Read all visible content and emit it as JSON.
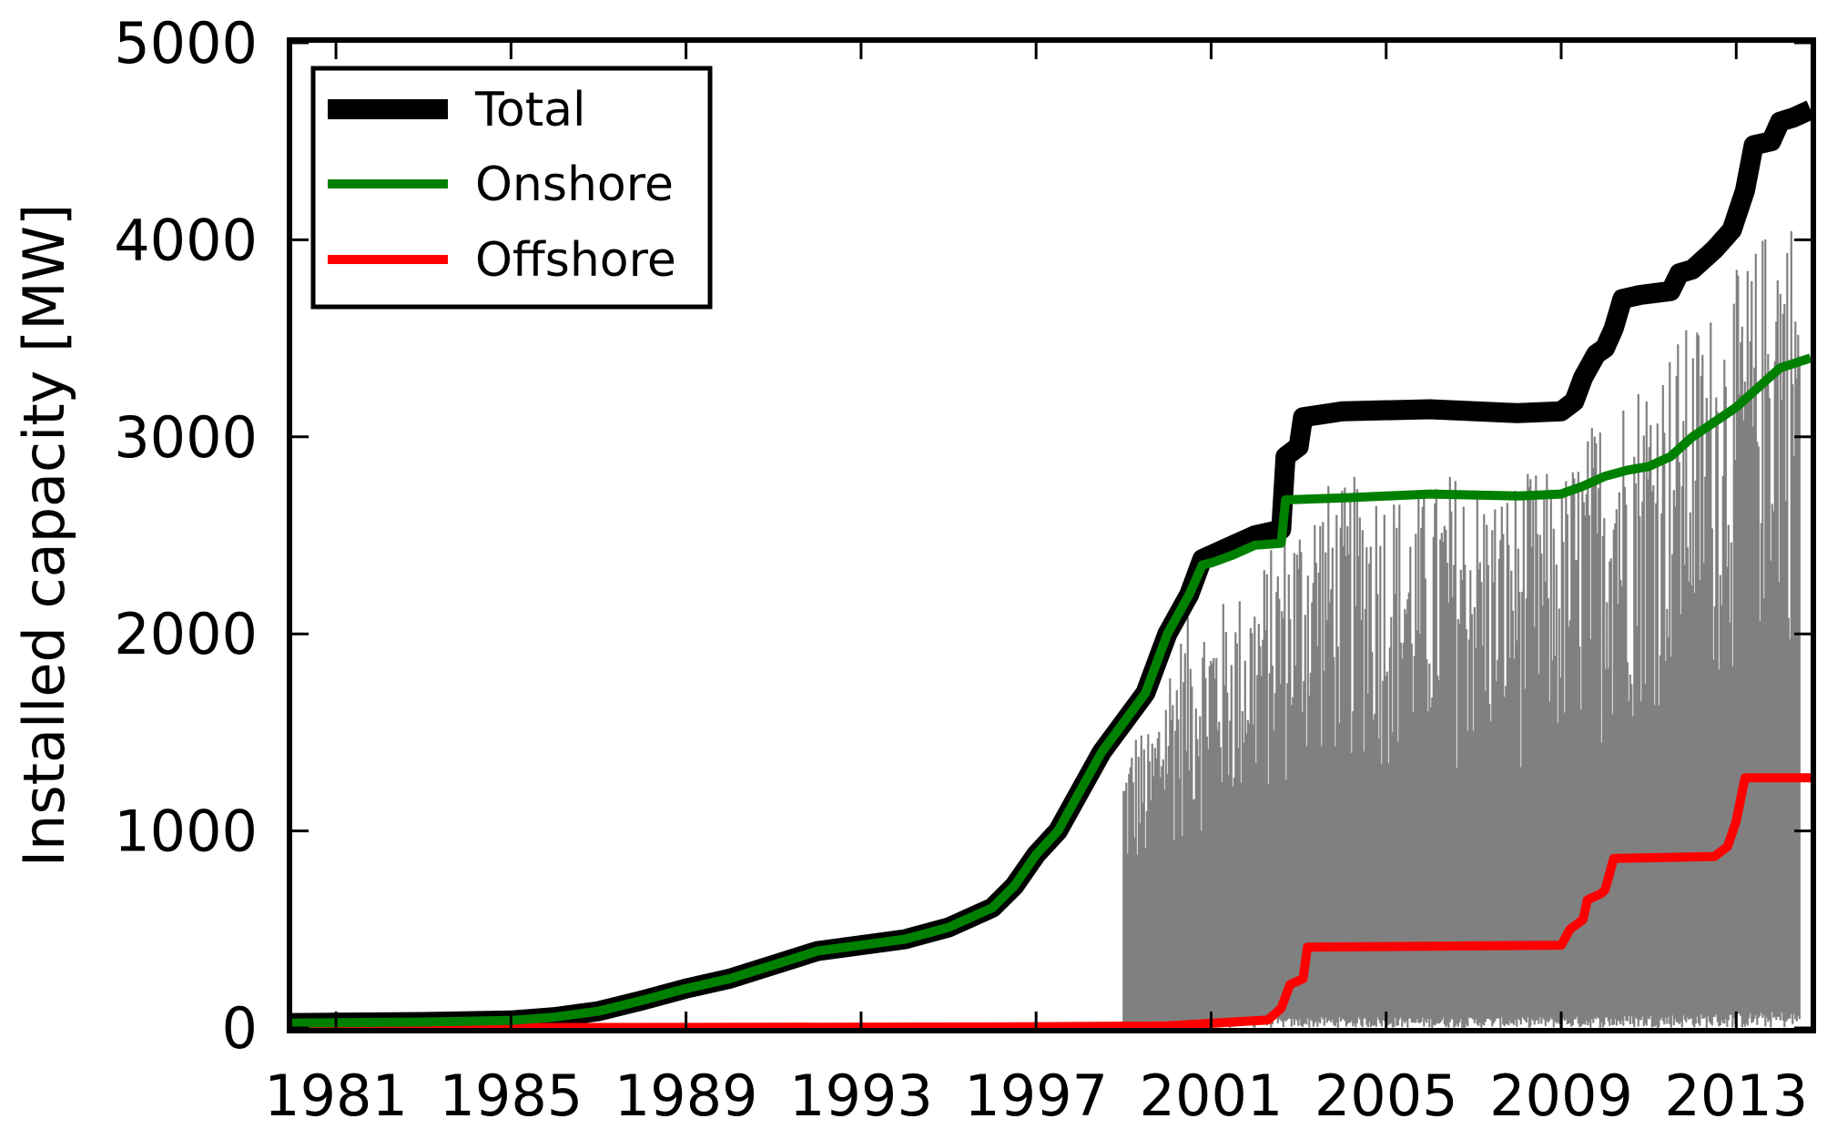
{
  "chart_data": {
    "type": "line",
    "title": "",
    "xlabel": "",
    "ylabel": "Installed capacity [MW]",
    "xlim": [
      1980.0,
      2014.7
    ],
    "ylim": [
      0,
      5000
    ],
    "x_ticks": [
      1981,
      1985,
      1989,
      1993,
      1997,
      2001,
      2005,
      2009,
      2013
    ],
    "y_ticks": [
      0,
      1000,
      2000,
      3000,
      4000,
      5000
    ],
    "grid": false,
    "legend_position": "upper-left",
    "series": [
      {
        "name": "Total",
        "color": "#000000",
        "points": [
          [
            1980.0,
            25
          ],
          [
            1983.0,
            30
          ],
          [
            1985.0,
            38
          ],
          [
            1986.0,
            55
          ],
          [
            1987.0,
            85
          ],
          [
            1988.0,
            140
          ],
          [
            1989.0,
            200
          ],
          [
            1990.0,
            250
          ],
          [
            1991.0,
            320
          ],
          [
            1992.0,
            390
          ],
          [
            1993.0,
            420
          ],
          [
            1994.0,
            450
          ],
          [
            1995.0,
            510
          ],
          [
            1996.0,
            610
          ],
          [
            1996.5,
            720
          ],
          [
            1997.0,
            880
          ],
          [
            1997.5,
            1000
          ],
          [
            1998.0,
            1200
          ],
          [
            1998.5,
            1400
          ],
          [
            1999.0,
            1550
          ],
          [
            1999.5,
            1700
          ],
          [
            2000.0,
            2000
          ],
          [
            2000.5,
            2200
          ],
          [
            2000.8,
            2380
          ],
          [
            2001.0,
            2400
          ],
          [
            2001.5,
            2450
          ],
          [
            2002.0,
            2500
          ],
          [
            2002.6,
            2530
          ],
          [
            2002.7,
            2900
          ],
          [
            2003.0,
            2950
          ],
          [
            2003.1,
            3100
          ],
          [
            2004.0,
            3130
          ],
          [
            2006.0,
            3140
          ],
          [
            2008.0,
            3120
          ],
          [
            2009.0,
            3130
          ],
          [
            2009.3,
            3180
          ],
          [
            2009.5,
            3300
          ],
          [
            2009.8,
            3420
          ],
          [
            2010.0,
            3450
          ],
          [
            2010.2,
            3550
          ],
          [
            2010.4,
            3700
          ],
          [
            2010.8,
            3720
          ],
          [
            2011.5,
            3740
          ],
          [
            2011.7,
            3830
          ],
          [
            2012.0,
            3850
          ],
          [
            2012.5,
            3950
          ],
          [
            2012.9,
            4050
          ],
          [
            2013.2,
            4250
          ],
          [
            2013.4,
            4480
          ],
          [
            2013.8,
            4500
          ],
          [
            2014.0,
            4600
          ],
          [
            2014.3,
            4620
          ],
          [
            2014.7,
            4660
          ]
        ]
      },
      {
        "name": "Onshore",
        "color": "#008000",
        "points": [
          [
            1980.0,
            25
          ],
          [
            1983.0,
            30
          ],
          [
            1985.0,
            38
          ],
          [
            1986.0,
            55
          ],
          [
            1987.0,
            85
          ],
          [
            1988.0,
            140
          ],
          [
            1989.0,
            200
          ],
          [
            1990.0,
            250
          ],
          [
            1991.0,
            320
          ],
          [
            1992.0,
            390
          ],
          [
            1993.0,
            420
          ],
          [
            1994.0,
            450
          ],
          [
            1995.0,
            510
          ],
          [
            1996.0,
            610
          ],
          [
            1996.5,
            720
          ],
          [
            1997.0,
            880
          ],
          [
            1997.5,
            1000
          ],
          [
            1998.0,
            1200
          ],
          [
            1998.5,
            1400
          ],
          [
            1999.0,
            1550
          ],
          [
            1999.5,
            1700
          ],
          [
            2000.0,
            2000
          ],
          [
            2000.5,
            2200
          ],
          [
            2000.8,
            2350
          ],
          [
            2001.0,
            2360
          ],
          [
            2001.5,
            2400
          ],
          [
            2002.0,
            2450
          ],
          [
            2002.6,
            2460
          ],
          [
            2002.7,
            2680
          ],
          [
            2004.0,
            2690
          ],
          [
            2006.0,
            2710
          ],
          [
            2008.0,
            2700
          ],
          [
            2009.0,
            2710
          ],
          [
            2009.5,
            2750
          ],
          [
            2010.0,
            2800
          ],
          [
            2010.5,
            2830
          ],
          [
            2011.0,
            2850
          ],
          [
            2011.5,
            2900
          ],
          [
            2012.0,
            3000
          ],
          [
            2013.0,
            3150
          ],
          [
            2013.5,
            3250
          ],
          [
            2014.0,
            3350
          ],
          [
            2014.7,
            3400
          ]
        ]
      },
      {
        "name": "Offshore",
        "color": "#ff0000",
        "points": [
          [
            1980.0,
            0
          ],
          [
            1996.0,
            5
          ],
          [
            2000.0,
            10
          ],
          [
            2001.5,
            30
          ],
          [
            2002.3,
            40
          ],
          [
            2002.6,
            100
          ],
          [
            2002.8,
            220
          ],
          [
            2003.1,
            250
          ],
          [
            2003.2,
            410
          ],
          [
            2009.0,
            420
          ],
          [
            2009.2,
            500
          ],
          [
            2009.5,
            550
          ],
          [
            2009.6,
            650
          ],
          [
            2009.9,
            680
          ],
          [
            2010.0,
            700
          ],
          [
            2010.2,
            860
          ],
          [
            2012.5,
            870
          ],
          [
            2012.8,
            920
          ],
          [
            2013.0,
            1050
          ],
          [
            2013.2,
            1270
          ],
          [
            2014.7,
            1270
          ]
        ]
      },
      {
        "name": "",
        "color": "#808080",
        "x_range": [
          1999.0,
          2014.45
        ],
        "envelope": [
          [
            1999.0,
            1400
          ],
          [
            1999.3,
            1550
          ],
          [
            1999.6,
            1500
          ],
          [
            2000.0,
            1900
          ],
          [
            2000.5,
            2100
          ],
          [
            2001.0,
            2150
          ],
          [
            2001.5,
            2200
          ],
          [
            2002.0,
            2300
          ],
          [
            2002.5,
            2500
          ],
          [
            2003.0,
            2650
          ],
          [
            2003.5,
            2800
          ],
          [
            2004.0,
            2750
          ],
          [
            2004.5,
            2850
          ],
          [
            2005.0,
            2800
          ],
          [
            2005.5,
            2700
          ],
          [
            2006.0,
            2750
          ],
          [
            2006.5,
            2850
          ],
          [
            2007.0,
            2800
          ],
          [
            2007.5,
            2750
          ],
          [
            2008.0,
            2800
          ],
          [
            2008.5,
            2850
          ],
          [
            2009.0,
            2800
          ],
          [
            2009.5,
            3000
          ],
          [
            2010.0,
            3200
          ],
          [
            2010.5,
            3300
          ],
          [
            2011.0,
            3400
          ],
          [
            2011.5,
            3500
          ],
          [
            2012.0,
            3600
          ],
          [
            2012.5,
            3700
          ],
          [
            2013.0,
            3850
          ],
          [
            2013.5,
            4000
          ],
          [
            2014.0,
            4300
          ],
          [
            2014.45,
            4100
          ]
        ]
      }
    ]
  }
}
